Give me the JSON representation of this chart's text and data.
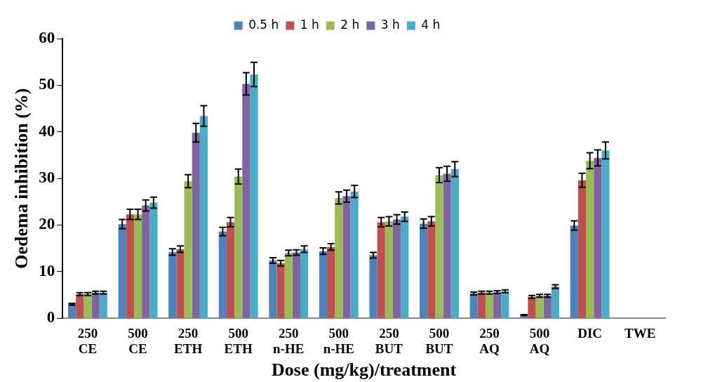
{
  "chart_data": {
    "type": "bar",
    "xlabel": "Dose (mg/kg)/treatment",
    "ylabel": "Oedema inhibition (%)",
    "categories": [
      "250 CE",
      "500 CE",
      "250 ETH",
      "500 ETH",
      "250 n-HE",
      "500 n-HE",
      "250 BUT",
      "500 BUT",
      "250 AQ",
      "500 AQ",
      "DIC",
      "TWE"
    ],
    "series": [
      {
        "name": "0.5 h",
        "color": "#4f81bd",
        "values": [
          3.0,
          20.2,
          14.2,
          18.6,
          12.4,
          14.4,
          13.5,
          20.3,
          5.3,
          0.7,
          19.9,
          0
        ],
        "errors": [
          0.2,
          1.0,
          0.7,
          0.9,
          0.6,
          0.7,
          0.6,
          1.0,
          0.3,
          0.1,
          1.0,
          null
        ]
      },
      {
        "name": "1 h",
        "color": "#c0504d",
        "values": [
          5.2,
          22.3,
          14.8,
          20.6,
          11.8,
          15.3,
          20.6,
          20.8,
          5.5,
          4.6,
          29.6,
          0
        ],
        "errors": [
          0.3,
          1.1,
          0.7,
          1.0,
          0.6,
          0.7,
          1.0,
          1.0,
          0.3,
          0.3,
          1.5,
          null
        ]
      },
      {
        "name": "2 h",
        "color": "#9bbb59",
        "values": [
          5.2,
          22.3,
          29.4,
          30.4,
          14.0,
          25.8,
          20.8,
          30.7,
          5.5,
          4.8,
          33.8,
          0
        ],
        "errors": [
          0.3,
          1.1,
          1.4,
          1.6,
          0.6,
          1.3,
          1.0,
          1.6,
          0.3,
          0.3,
          1.7,
          null
        ]
      },
      {
        "name": "3 h",
        "color": "#8064a2",
        "values": [
          5.5,
          24.2,
          39.8,
          50.3,
          14.1,
          26.2,
          21.2,
          31.0,
          5.6,
          4.8,
          34.4,
          0
        ],
        "errors": [
          0.3,
          1.2,
          2.0,
          2.4,
          0.6,
          1.3,
          1.0,
          1.6,
          0.3,
          0.3,
          1.7,
          null
        ]
      },
      {
        "name": "4 h",
        "color": "#4bacc6",
        "values": [
          5.5,
          24.8,
          43.4,
          52.3,
          14.8,
          27.2,
          21.8,
          32.0,
          5.8,
          6.8,
          36.0,
          0
        ],
        "errors": [
          0.3,
          1.2,
          2.2,
          2.6,
          0.7,
          1.3,
          1.0,
          1.6,
          0.3,
          0.4,
          1.8,
          null
        ]
      }
    ],
    "ylim": [
      0,
      60
    ],
    "yticks": [
      0,
      10,
      20,
      30,
      40,
      50,
      60
    ],
    "grid": false,
    "legend": "top"
  }
}
